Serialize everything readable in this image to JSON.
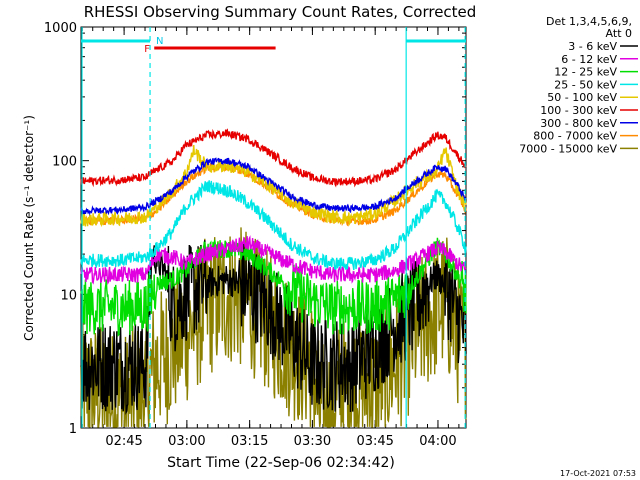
{
  "chart_data": {
    "type": "line",
    "title": "RHESSI Observing Summary Count Rates, Corrected",
    "xlabel": "Start Time (22-Sep-06 02:34:42)",
    "ylabel": "Corrected Count Rate (s⁻¹ detector⁻¹)",
    "y_scale": "log",
    "ylim": [
      1,
      1000
    ],
    "y_ticks": [
      {
        "value": 1,
        "label": "1"
      },
      {
        "value": 10,
        "label": "10"
      },
      {
        "value": 100,
        "label": "100"
      },
      {
        "value": 1000,
        "label": "1000"
      }
    ],
    "xlim_minutes": [
      0,
      92
    ],
    "x_ticks": [
      {
        "minute": 10.3,
        "label": "02:45"
      },
      {
        "minute": 25.3,
        "label": "03:00"
      },
      {
        "minute": 40.3,
        "label": "03:15"
      },
      {
        "minute": 55.3,
        "label": "03:30"
      },
      {
        "minute": 70.3,
        "label": "03:45"
      },
      {
        "minute": 85.3,
        "label": "04:00"
      }
    ],
    "legend_header": [
      "Det 1,3,4,5,6,9,",
      "Att 0"
    ],
    "legend_position": "right",
    "series": [
      {
        "name": "3 - 6 keV",
        "color": "#000000",
        "x_minutes": [
          0,
          10,
          15.5,
          17,
          20,
          22,
          25,
          28,
          30,
          35,
          40,
          45,
          50,
          55,
          60,
          65,
          70,
          75,
          80,
          82,
          85,
          87,
          90,
          92
        ],
        "values": [
          3,
          3,
          3,
          20,
          15,
          8,
          10,
          11,
          12,
          13,
          11,
          8,
          5,
          3,
          3,
          3,
          4,
          6,
          8,
          11,
          14,
          12,
          7,
          5
        ]
      },
      {
        "name": "6 - 12 keV",
        "color": "#e000e0",
        "x_minutes": [
          0,
          10,
          15.5,
          18,
          22,
          25,
          30,
          35,
          40,
          45,
          50,
          55,
          60,
          65,
          70,
          75,
          80,
          85,
          87,
          90,
          92
        ],
        "values": [
          14,
          14,
          14,
          20,
          19,
          17,
          20,
          22,
          24,
          20,
          17,
          15,
          14,
          14,
          14,
          15,
          18,
          22,
          21,
          17,
          15
        ]
      },
      {
        "name": "12 - 25 keV",
        "color": "#00dd00",
        "x_minutes": [
          0,
          10,
          15.5,
          18,
          22,
          25,
          30,
          35,
          40,
          45,
          50,
          55,
          60,
          65,
          70,
          75,
          80,
          85,
          87,
          90,
          92
        ],
        "values": [
          8,
          8,
          8,
          12,
          13,
          15,
          22,
          22,
          20,
          15,
          11,
          9,
          8,
          8,
          8,
          9,
          13,
          23,
          20,
          14,
          10
        ]
      },
      {
        "name": "25 - 50 keV",
        "color": "#00e6e6",
        "x_minutes": [
          0,
          10,
          15.5,
          18,
          22,
          25,
          30,
          35,
          40,
          45,
          50,
          55,
          60,
          65,
          70,
          75,
          80,
          85,
          87,
          90,
          92
        ],
        "values": [
          18,
          18,
          19,
          22,
          30,
          45,
          65,
          60,
          48,
          35,
          24,
          19,
          17,
          17,
          18,
          22,
          35,
          55,
          50,
          32,
          22
        ]
      },
      {
        "name": "50 - 100 keV",
        "color": "#e6c800",
        "x_minutes": [
          0,
          10,
          15.5,
          18,
          22,
          25,
          27,
          30,
          35,
          40,
          45,
          50,
          55,
          60,
          65,
          70,
          75,
          80,
          85,
          87,
          90,
          92
        ],
        "values": [
          36,
          37,
          38,
          45,
          60,
          80,
          120,
          90,
          92,
          82,
          65,
          50,
          42,
          38,
          37,
          40,
          50,
          68,
          82,
          120,
          60,
          45
        ]
      },
      {
        "name": "100 - 300 keV",
        "color": "#e60000",
        "x_minutes": [
          0,
          10,
          15.5,
          18,
          22,
          25,
          30,
          35,
          40,
          45,
          50,
          55,
          60,
          65,
          70,
          75,
          80,
          85,
          87,
          90,
          92
        ],
        "values": [
          70,
          72,
          75,
          85,
          100,
          130,
          155,
          160,
          145,
          115,
          90,
          75,
          70,
          70,
          72,
          85,
          115,
          155,
          150,
          110,
          90
        ]
      },
      {
        "name": "300 - 800 keV",
        "color": "#0000e6",
        "x_minutes": [
          0,
          10,
          15.5,
          18,
          22,
          25,
          30,
          35,
          40,
          45,
          50,
          55,
          60,
          65,
          70,
          75,
          80,
          85,
          87,
          90,
          92
        ],
        "values": [
          42,
          43,
          45,
          50,
          60,
          75,
          98,
          100,
          90,
          70,
          55,
          47,
          44,
          44,
          45,
          52,
          70,
          90,
          88,
          65,
          50
        ]
      },
      {
        "name": "800 - 7000 keV",
        "color": "#ff8c00",
        "x_minutes": [
          0,
          10,
          15.5,
          18,
          22,
          25,
          30,
          35,
          40,
          45,
          50,
          55,
          60,
          65,
          70,
          75,
          80,
          85,
          87,
          90,
          92
        ],
        "values": [
          35,
          36,
          37,
          42,
          55,
          70,
          88,
          90,
          80,
          62,
          48,
          40,
          36,
          35,
          36,
          42,
          58,
          80,
          78,
          56,
          42
        ]
      },
      {
        "name": "7000 - 15000 keV",
        "color": "#8b8000",
        "x_minutes": [
          0,
          10,
          15.5,
          18,
          22,
          25,
          30,
          35,
          40,
          45,
          50,
          55,
          57,
          60,
          62,
          65,
          70,
          75,
          80,
          85,
          87,
          90,
          92
        ],
        "values": [
          2,
          1.5,
          2,
          3,
          4,
          5,
          8,
          10,
          9,
          6,
          4,
          3,
          1.3,
          1.4,
          2,
          2,
          2,
          3,
          5,
          8,
          9,
          5,
          4
        ]
      }
    ],
    "annotations": [
      {
        "label": "F",
        "color": "#e60000",
        "bar_start_minute": 17.5,
        "bar_end_minute": 46.5
      },
      {
        "label": "N",
        "color": "#00c8e6"
      }
    ],
    "status_bands": {
      "color": "#00e6e6",
      "solid_lines_minute": [
        0,
        77.7
      ],
      "dashed_lines_minute": [
        16.5,
        91.8
      ],
      "top_bars": [
        [
          0,
          16.5
        ],
        [
          77.7,
          92
        ]
      ]
    }
  },
  "footer": {
    "timestamp": "17-Oct-2021 07:53"
  }
}
